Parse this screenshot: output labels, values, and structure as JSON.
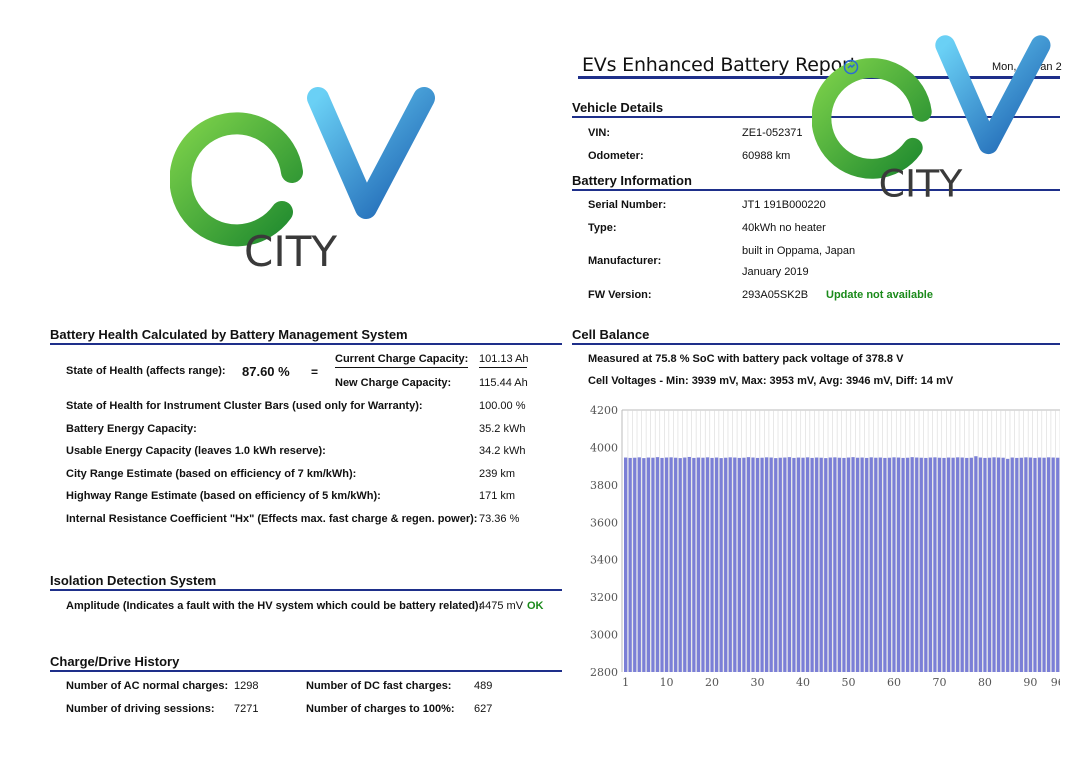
{
  "logo": {
    "text": "CITY"
  },
  "report": {
    "title": "EVs Enhanced Battery Report",
    "date": "Mon, 20 Jan 2"
  },
  "vehicle": {
    "heading": "Vehicle Details",
    "vin_label": "VIN:",
    "vin": "ZE1-052371",
    "odometer_label": "Odometer:",
    "odometer": "60988 km"
  },
  "battery": {
    "heading": "Battery Information",
    "serial_label": "Serial Number:",
    "serial": "JT1 191B000220",
    "type_label": "Type:",
    "type": "40kWh no heater",
    "manufacturer_label": "Manufacturer:",
    "manufacturer_1": "built in Oppama, Japan",
    "manufacturer_2": "January 2019",
    "fw_label": "FW Version:",
    "fw": "293A05SK2B",
    "fw_status": "Update not available"
  },
  "health": {
    "heading": "Battery Health Calculated by Battery Management System",
    "soh_label": "State of Health (affects range):",
    "soh_value": "87.60 %",
    "equals": "=",
    "current_cap_label": "Current Charge Capacity:",
    "current_cap": "101.13 Ah",
    "new_cap_label": "New Charge Capacity:",
    "new_cap": "115.44 Ah",
    "rows": [
      {
        "label": "State of Health for Instrument Cluster Bars (used only for Warranty):",
        "value": "100.00 %"
      },
      {
        "label": "Battery Energy Capacity:",
        "value": "35.2 kWh"
      },
      {
        "label": "Usable Energy Capacity (leaves 1.0 kWh reserve):",
        "value": "34.2 kWh"
      },
      {
        "label": "City Range Estimate (based on efficiency of 7 km/kWh):",
        "value": "239 km"
      },
      {
        "label": "Highway Range Estimate (based on efficiency of 5 km/kWh):",
        "value": "171 km"
      },
      {
        "label": "Internal Resistance Coefficient \"Hx\" (Effects max. fast charge & regen. power):",
        "value": "73.36 %"
      }
    ]
  },
  "isolation": {
    "heading": "Isolation Detection System",
    "label": "Amplitude (Indicates a fault with the HV system which could be battery related):",
    "value": "4475 mV",
    "status": "OK"
  },
  "history": {
    "heading": "Charge/Drive History",
    "ac_label": "Number of AC normal charges:",
    "ac": "1298",
    "dc_label": "Number of DC fast charges:",
    "dc": "489",
    "drive_label": "Number of driving sessions:",
    "drive": "7271",
    "full_label": "Number of charges to 100%:",
    "full": "627"
  },
  "cell_balance": {
    "heading": "Cell Balance",
    "measured": "Measured at 75.8 % SoC with battery pack voltage of 378.8 V",
    "voltages": "Cell Voltages - Min: 3939 mV, Max: 3953 mV, Avg: 3946 mV, Diff: 14 mV"
  },
  "colors": {
    "accent": "#1e2f8a",
    "bar": "#7b7fd6",
    "ok": "#1a8a1a",
    "logo_green": "#4cae3c",
    "logo_blue": "#2a8ad6"
  },
  "chart_data": {
    "type": "bar",
    "title": "",
    "xlabel": "",
    "ylabel": "",
    "ylim": [
      2800,
      4200
    ],
    "yticks": [
      2800,
      3000,
      3200,
      3400,
      3600,
      3800,
      4000,
      4200
    ],
    "xticks": [
      "1",
      "10",
      "20",
      "30",
      "40",
      "50",
      "60",
      "70",
      "80",
      "90",
      "96"
    ],
    "x_first": 1,
    "values": [
      3946,
      3944,
      3945,
      3947,
      3943,
      3946,
      3945,
      3948,
      3944,
      3946,
      3947,
      3945,
      3943,
      3946,
      3949,
      3944,
      3946,
      3945,
      3947,
      3944,
      3946,
      3943,
      3945,
      3947,
      3946,
      3944,
      3945,
      3948,
      3946,
      3944,
      3945,
      3947,
      3946,
      3943,
      3945,
      3946,
      3948,
      3944,
      3946,
      3945,
      3947,
      3944,
      3946,
      3945,
      3943,
      3946,
      3947,
      3945,
      3944,
      3946,
      3948,
      3945,
      3946,
      3944,
      3947,
      3945,
      3946,
      3944,
      3945,
      3947,
      3946,
      3944,
      3945,
      3948,
      3946,
      3945,
      3944,
      3946,
      3947,
      3945,
      3944,
      3946,
      3945,
      3947,
      3946,
      3944,
      3945,
      3953,
      3946,
      3944,
      3945,
      3947,
      3946,
      3945,
      3939,
      3946,
      3944,
      3945,
      3947,
      3946,
      3944,
      3946,
      3945,
      3947,
      3946,
      3945
    ]
  }
}
